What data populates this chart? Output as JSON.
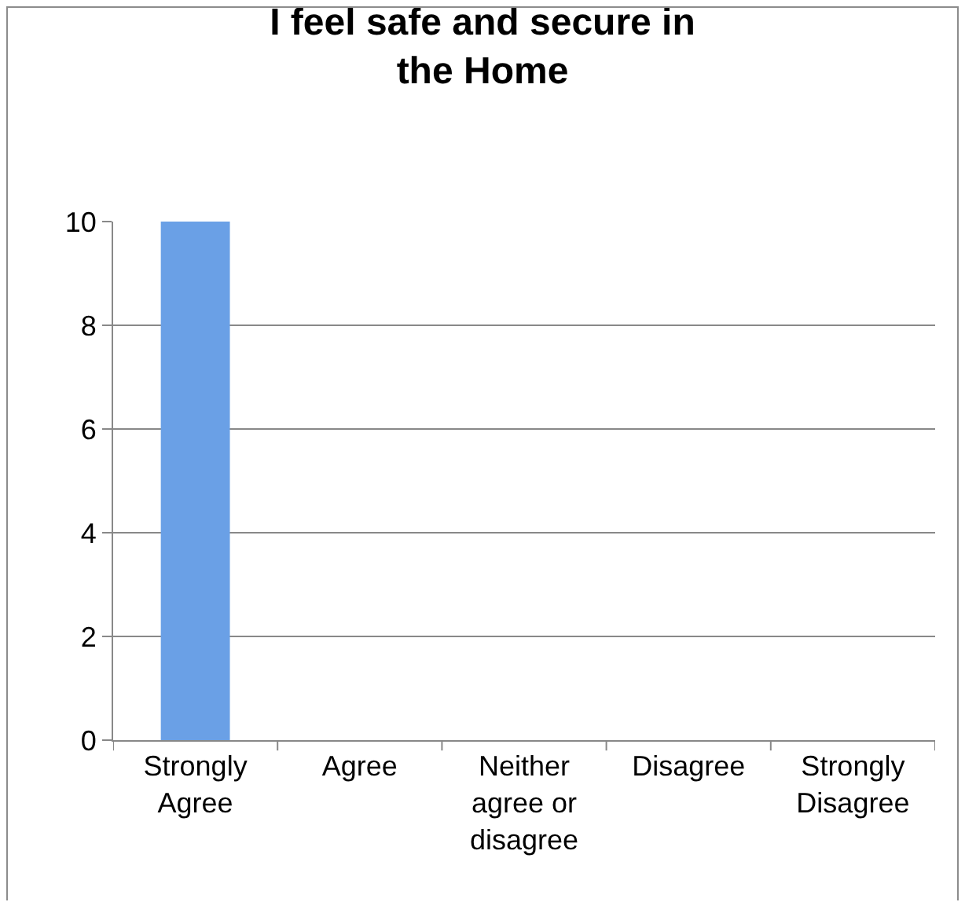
{
  "chart_data": {
    "type": "bar",
    "title": "I feel safe and secure in the Home",
    "categories": [
      "Strongly Agree",
      "Agree",
      "Neither agree or disagree",
      "Disagree",
      "Strongly Disagree"
    ],
    "values": [
      10,
      0,
      0,
      0,
      0
    ],
    "color": "#6aa0e6",
    "ylim": [
      0,
      10
    ],
    "yticks": [
      0,
      2,
      4,
      6,
      8,
      10
    ],
    "grid": "y",
    "legend": false
  }
}
